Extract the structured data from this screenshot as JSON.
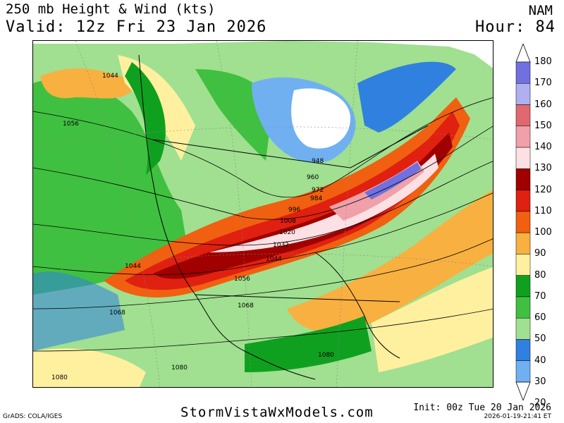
{
  "header": {
    "title": "250 mb Height & Wind (kts)",
    "valid": "Valid: 12z Fri 23 Jan 2026",
    "model": "NAM",
    "hour": "Hour: 84"
  },
  "colorbar": {
    "labels": [
      "180",
      "170",
      "160",
      "150",
      "140",
      "130",
      "120",
      "110",
      "100",
      "90",
      "80",
      "70",
      "60",
      "50",
      "40",
      "30",
      "20"
    ],
    "colors": [
      "#4040c8",
      "#7070e0",
      "#b0b0f0",
      "#e06870",
      "#f0a0a8",
      "#fce0e4",
      "#a00000",
      "#e02010",
      "#f06010",
      "#f8b040",
      "#fff0a0",
      "#10a020",
      "#40c040",
      "#a0e090",
      "#3080e0",
      "#70b0f0",
      "#ffffff"
    ]
  },
  "map": {
    "contour_labels": [
      "1044",
      "1056",
      "948",
      "960",
      "972",
      "984",
      "996",
      "1008",
      "1020",
      "1032",
      "1044",
      "1044",
      "1056",
      "1068",
      "1068",
      "1080",
      "1080",
      "1080"
    ]
  },
  "footer": {
    "site": "StormVistaWxModels.com",
    "grads": "GrADS: COLA/IGES",
    "init": "Init: 00z Tue 20 Jan 2026",
    "stamp": "2026-01-19-21:41 ET"
  }
}
